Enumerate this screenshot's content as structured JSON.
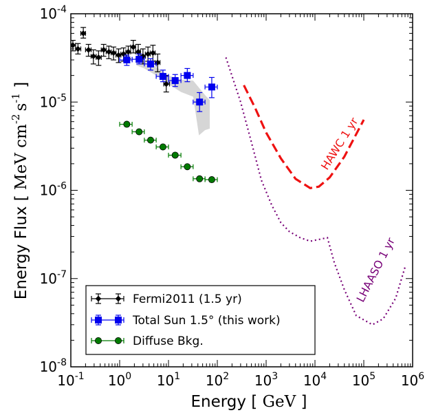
{
  "chart_data": {
    "type": "scatter",
    "xlabel": "Energy",
    "xlabel_unit": "GeV",
    "ylabel": "Energy Flux",
    "ylabel_unit_parts": [
      "MeV cm",
      "s"
    ],
    "ylabel_exponents": [
      "-2",
      "-1"
    ],
    "x_scale": "log",
    "y_scale": "log",
    "xlim": [
      0.1,
      1000000
    ],
    "ylim": [
      1e-08,
      0.0001
    ],
    "grid": false,
    "legend_position": "lower-left",
    "x_tick_labels": [
      {
        "value": 0.1,
        "base": "10",
        "exp": "-1"
      },
      {
        "value": 1,
        "base": "10",
        "exp": "0"
      },
      {
        "value": 10,
        "base": "10",
        "exp": "1"
      },
      {
        "value": 100,
        "base": "10",
        "exp": "2"
      },
      {
        "value": 1000,
        "base": "10",
        "exp": "3"
      },
      {
        "value": 10000,
        "base": "10",
        "exp": "4"
      },
      {
        "value": 100000,
        "base": "10",
        "exp": "5"
      },
      {
        "value": 1000000,
        "base": "10",
        "exp": "6"
      }
    ],
    "y_tick_labels": [
      {
        "value": 1e-08,
        "base": "10",
        "exp": "-8"
      },
      {
        "value": 1e-07,
        "base": "10",
        "exp": "-7"
      },
      {
        "value": 1e-06,
        "base": "10",
        "exp": "-6"
      },
      {
        "value": 1e-05,
        "base": "10",
        "exp": "-5"
      },
      {
        "value": 0.0001,
        "base": "10",
        "exp": "-4"
      }
    ],
    "series": [
      {
        "name": "Fermi2011 (1.5 yr)",
        "kind": "points",
        "color": "#000000",
        "marker": "diamond",
        "points": [
          {
            "x": 0.11,
            "y": 4.4e-05,
            "xlo": 0.1,
            "xhi": 0.125,
            "ylo": 3.8e-05,
            "yhi": 5e-05
          },
          {
            "x": 0.14,
            "y": 4e-05,
            "xlo": 0.125,
            "xhi": 0.16,
            "ylo": 3.5e-05,
            "yhi": 4.6e-05
          },
          {
            "x": 0.18,
            "y": 6e-05,
            "xlo": 0.16,
            "xhi": 0.2,
            "ylo": 5.3e-05,
            "yhi": 7e-05
          },
          {
            "x": 0.23,
            "y": 3.9e-05,
            "xlo": 0.2,
            "xhi": 0.26,
            "ylo": 3.3e-05,
            "yhi": 4.5e-05
          },
          {
            "x": 0.29,
            "y": 3.3e-05,
            "xlo": 0.26,
            "xhi": 0.33,
            "ylo": 2.7e-05,
            "yhi": 3.9e-05
          },
          {
            "x": 0.37,
            "y": 3.2e-05,
            "xlo": 0.33,
            "xhi": 0.42,
            "ylo": 2.6e-05,
            "yhi": 3.8e-05
          },
          {
            "x": 0.47,
            "y": 3.9e-05,
            "xlo": 0.42,
            "xhi": 0.53,
            "ylo": 3.3e-05,
            "yhi": 4.5e-05
          },
          {
            "x": 0.6,
            "y": 3.7e-05,
            "xlo": 0.53,
            "xhi": 0.67,
            "ylo": 3.1e-05,
            "yhi": 4.3e-05
          },
          {
            "x": 0.75,
            "y": 3.6e-05,
            "xlo": 0.67,
            "xhi": 0.84,
            "ylo": 3e-05,
            "yhi": 4.2e-05
          },
          {
            "x": 0.95,
            "y": 3.4e-05,
            "xlo": 0.84,
            "xhi": 1.06,
            "ylo": 2.8e-05,
            "yhi": 4e-05
          },
          {
            "x": 1.2,
            "y": 3.5e-05,
            "xlo": 1.06,
            "xhi": 1.34,
            "ylo": 2.9e-05,
            "yhi": 4.1e-05
          },
          {
            "x": 1.5,
            "y": 3.7e-05,
            "xlo": 1.34,
            "xhi": 1.68,
            "ylo": 3.1e-05,
            "yhi": 4.3e-05
          },
          {
            "x": 1.9,
            "y": 4.2e-05,
            "xlo": 1.68,
            "xhi": 2.12,
            "ylo": 3.6e-05,
            "yhi": 5e-05
          },
          {
            "x": 2.4,
            "y": 3.7e-05,
            "xlo": 2.12,
            "xhi": 2.67,
            "ylo": 3.1e-05,
            "yhi": 4.5e-05
          },
          {
            "x": 3.0,
            "y": 3.3e-05,
            "xlo": 2.67,
            "xhi": 3.36,
            "ylo": 2.7e-05,
            "yhi": 4e-05
          },
          {
            "x": 3.8,
            "y": 3.5e-05,
            "xlo": 3.36,
            "xhi": 4.23,
            "ylo": 2.9e-05,
            "yhi": 4.2e-05
          },
          {
            "x": 4.8,
            "y": 3.6e-05,
            "xlo": 4.23,
            "xhi": 5.33,
            "ylo": 2.9e-05,
            "yhi": 4.4e-05
          },
          {
            "x": 6.0,
            "y": 2.8e-05,
            "xlo": 5.33,
            "xhi": 6.7,
            "ylo": 2.2e-05,
            "yhi": 3.5e-05
          },
          {
            "x": 9.0,
            "y": 1.6e-05,
            "xlo": 8.0,
            "xhi": 10.5,
            "ylo": 1.3e-05,
            "yhi": 2e-05
          }
        ]
      },
      {
        "name": "Total Sun 1.5° (this work)",
        "kind": "points",
        "color": "#0000ee",
        "marker": "square",
        "points": [
          {
            "x": 1.4,
            "y": 3e-05,
            "xlo": 1.0,
            "xhi": 1.8,
            "ylo": 2.6e-05,
            "yhi": 3.4e-05
          },
          {
            "x": 2.5,
            "y": 3.05e-05,
            "xlo": 1.8,
            "xhi": 3.2,
            "ylo": 2.7e-05,
            "yhi": 3.5e-05
          },
          {
            "x": 4.3,
            "y": 2.7e-05,
            "xlo": 3.2,
            "xhi": 5.6,
            "ylo": 2.3e-05,
            "yhi": 3.1e-05
          },
          {
            "x": 7.7,
            "y": 1.95e-05,
            "xlo": 5.6,
            "xhi": 10,
            "ylo": 1.7e-05,
            "yhi": 2.3e-05
          },
          {
            "x": 13.7,
            "y": 1.75e-05,
            "xlo": 10,
            "xhi": 18,
            "ylo": 1.5e-05,
            "yhi": 2.05e-05
          },
          {
            "x": 24.3,
            "y": 2e-05,
            "xlo": 18,
            "xhi": 32,
            "ylo": 1.7e-05,
            "yhi": 2.4e-05
          },
          {
            "x": 43.3,
            "y": 1e-05,
            "xlo": 32,
            "xhi": 56,
            "ylo": 7.8e-06,
            "yhi": 1.28e-05
          },
          {
            "x": 77,
            "y": 1.48e-05,
            "xlo": 56,
            "xhi": 100,
            "ylo": 1.12e-05,
            "yhi": 1.9e-05
          }
        ]
      },
      {
        "name": "Diffuse Bkg.",
        "kind": "points",
        "color": "#007a00",
        "marker": "circle",
        "points": [
          {
            "x": 1.4,
            "y": 5.6e-06,
            "xlo": 1.0,
            "xhi": 1.8
          },
          {
            "x": 2.5,
            "y": 4.6e-06,
            "xlo": 1.8,
            "xhi": 3.2
          },
          {
            "x": 4.3,
            "y": 3.7e-06,
            "xlo": 3.2,
            "xhi": 5.6
          },
          {
            "x": 7.7,
            "y": 3.1e-06,
            "xlo": 5.6,
            "xhi": 10
          },
          {
            "x": 13.7,
            "y": 2.5e-06,
            "xlo": 10,
            "xhi": 18
          },
          {
            "x": 24.3,
            "y": 1.85e-06,
            "xlo": 18,
            "xhi": 32
          },
          {
            "x": 43.3,
            "y": 1.35e-06,
            "xlo": 32,
            "xhi": 56
          },
          {
            "x": 77,
            "y": 1.32e-06,
            "xlo": 56,
            "xhi": 100
          }
        ]
      },
      {
        "kind": "band",
        "color": "#d6d6d6",
        "upper": [
          [
            2.2,
            3.1e-05
          ],
          [
            3.2,
            2.9e-05
          ],
          [
            5.6,
            2.5e-05
          ],
          [
            10,
            2e-05
          ],
          [
            18,
            1.8e-05
          ],
          [
            32,
            1.75e-05
          ],
          [
            56,
            1.2e-05
          ],
          [
            70,
            1.05e-05
          ]
        ],
        "lower": [
          [
            70,
            5e-06
          ],
          [
            56,
            4.8e-06
          ],
          [
            42,
            4.2e-06
          ],
          [
            32,
            1.15e-05
          ],
          [
            18,
            1.3e-05
          ],
          [
            10,
            1.6e-05
          ],
          [
            5.6,
            2e-05
          ],
          [
            3.2,
            2.4e-05
          ],
          [
            2.2,
            2.6e-05
          ]
        ]
      },
      {
        "name": "HAWC 1 yr",
        "kind": "line",
        "color": "#ee1111",
        "dash": "dashed",
        "points": [
          [
            350,
            1.55e-05
          ],
          [
            600,
            8.5e-06
          ],
          [
            1000,
            4.5e-06
          ],
          [
            2000,
            2.3e-06
          ],
          [
            4000,
            1.35e-06
          ],
          [
            8000,
            1.06e-06
          ],
          [
            12000,
            1.1e-06
          ],
          [
            20000,
            1.4e-06
          ],
          [
            40000,
            2.4e-06
          ],
          [
            100000,
            6.3e-06
          ]
        ]
      },
      {
        "name": "LHAASO 1 yr",
        "kind": "line",
        "color": "#770077",
        "dash": "dotted",
        "points": [
          [
            150,
            3.2e-05
          ],
          [
            300,
            1e-05
          ],
          [
            500,
            3.5e-06
          ],
          [
            800,
            1.3e-06
          ],
          [
            1300,
            6.8e-07
          ],
          [
            2000,
            4.3e-07
          ],
          [
            3000,
            3.4e-07
          ],
          [
            5000,
            2.9e-07
          ],
          [
            8000,
            2.65e-07
          ],
          [
            18000,
            2.9e-07
          ],
          [
            25000,
            1.5e-07
          ],
          [
            40000,
            7.5e-08
          ],
          [
            70000,
            3.8e-08
          ],
          [
            150000,
            3e-08
          ],
          [
            250000,
            3.5e-08
          ],
          [
            450000,
            6e-08
          ],
          [
            700000,
            1.35e-07
          ]
        ]
      }
    ],
    "annotations": [
      {
        "text": "HAWC 1 yr",
        "x": 37000,
        "y": 3.2e-06,
        "color": "#ee1111",
        "angle": -58
      },
      {
        "text": "LHAASO 1 yr",
        "x": 205000,
        "y": 1.2e-07,
        "color": "#770077",
        "angle": -63
      }
    ],
    "legend": [
      {
        "label": "Fermi2011 (1.5 yr)",
        "color": "#000000",
        "marker": "diamond"
      },
      {
        "label": "Total Sun 1.5° (this work)",
        "color": "#0000ee",
        "marker": "square"
      },
      {
        "label": "Diffuse Bkg.",
        "color": "#007a00",
        "marker": "circle"
      }
    ]
  }
}
